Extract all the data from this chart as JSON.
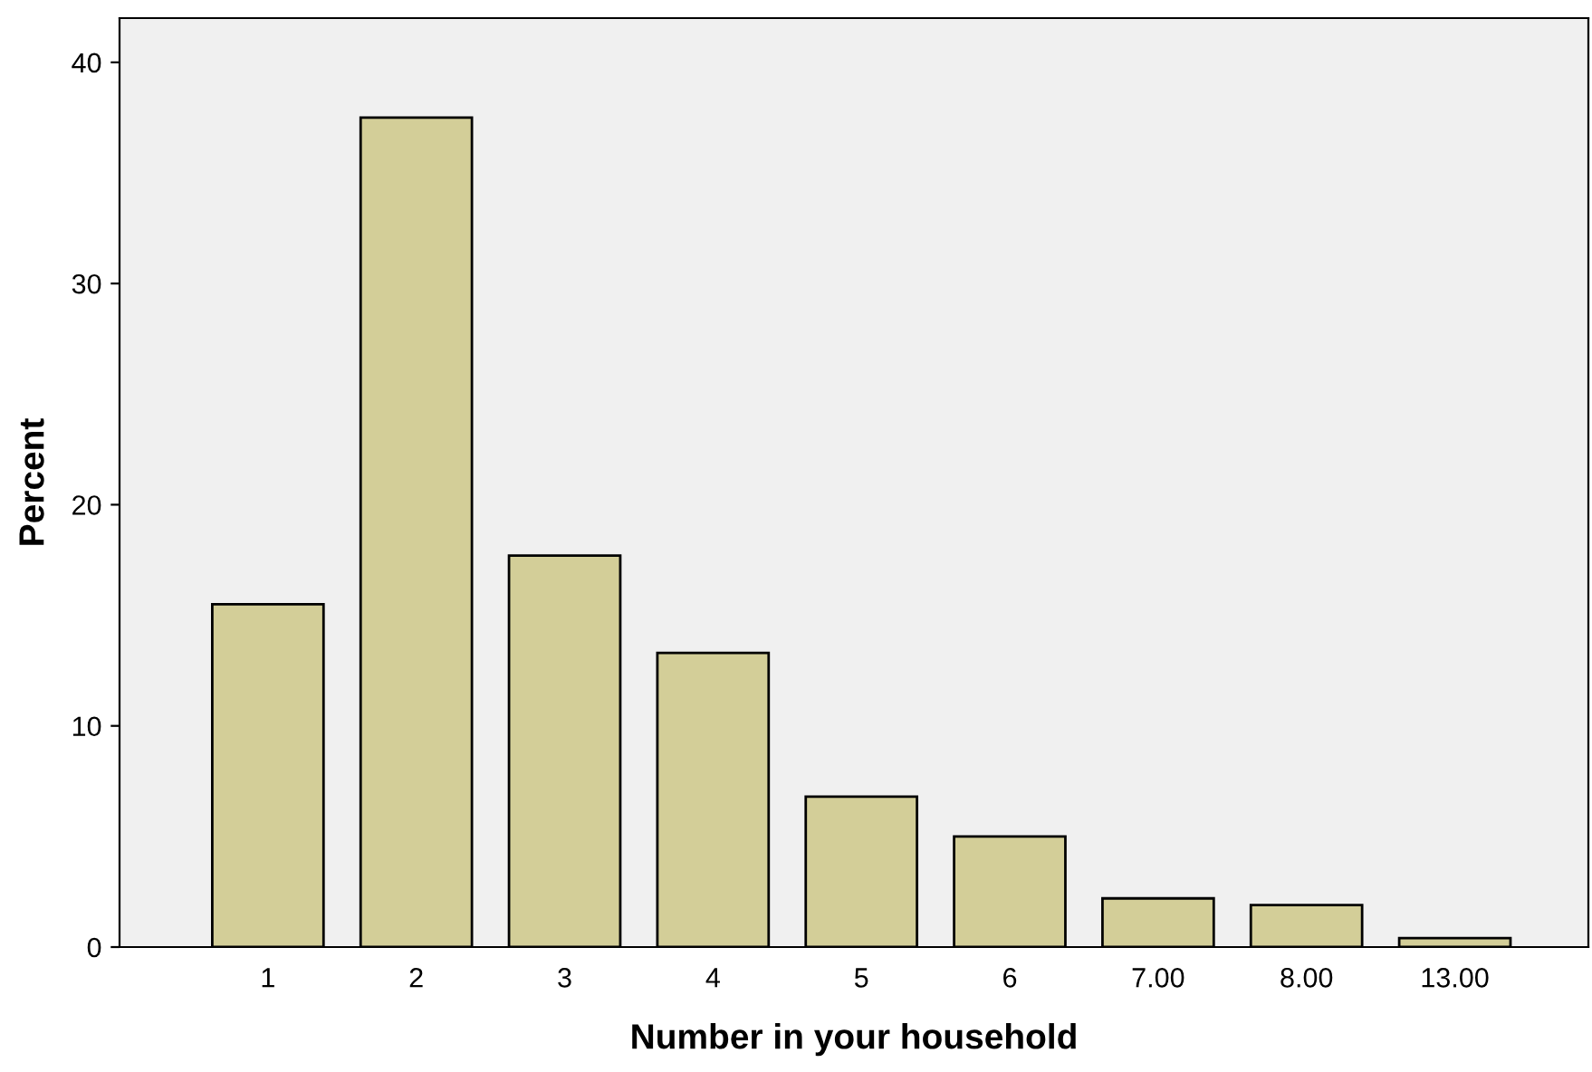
{
  "chart_data": {
    "type": "bar",
    "xlabel": "Number in your household",
    "ylabel": "Percent",
    "categories": [
      "1",
      "2",
      "3",
      "4",
      "5",
      "6",
      "7.00",
      "8.00",
      "13.00"
    ],
    "values": [
      15.5,
      37.5,
      17.7,
      13.3,
      6.8,
      5.0,
      2.2,
      1.9,
      0.4
    ],
    "color": "#d3ce98",
    "ylim": [
      0,
      42
    ],
    "yticks": [
      0,
      10,
      20,
      30,
      40
    ],
    "grid": false
  }
}
